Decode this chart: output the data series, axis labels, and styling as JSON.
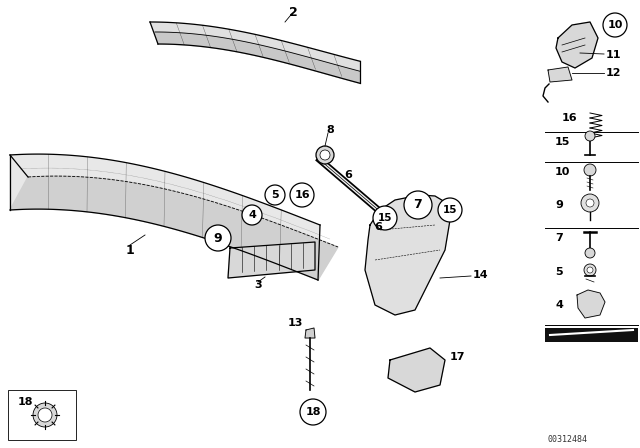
{
  "background_color": "#ffffff",
  "line_color": "#000000",
  "watermark": "00312484"
}
